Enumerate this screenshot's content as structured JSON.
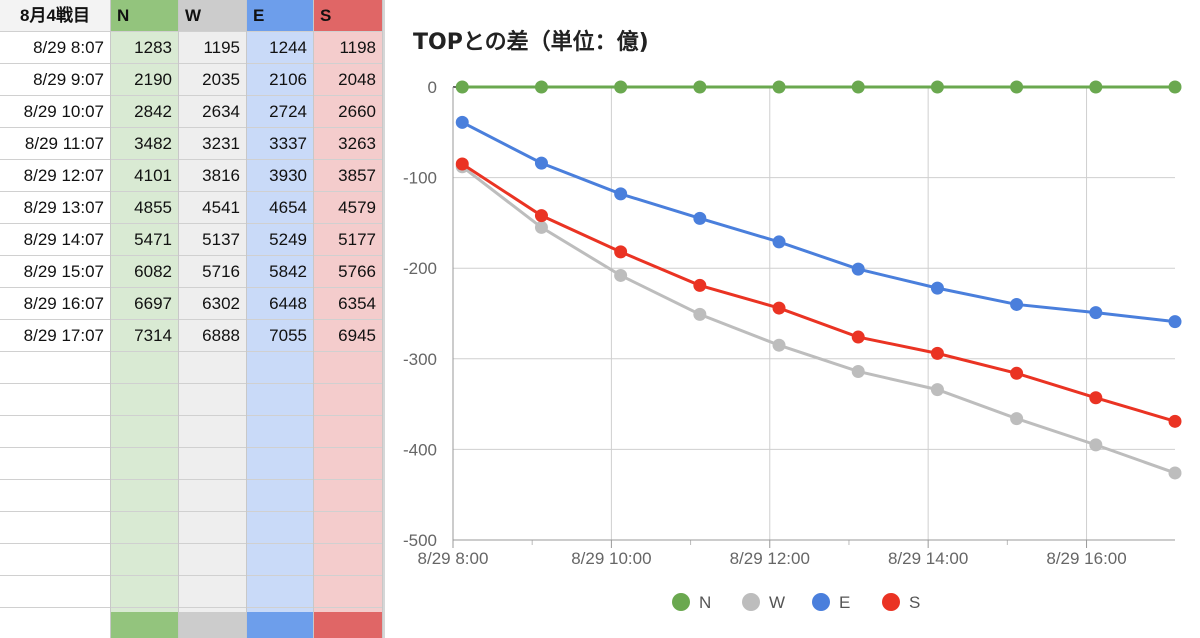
{
  "sheet": {
    "header_label": "8月4戦目",
    "columns": [
      {
        "code": "N",
        "header_color": "#93c47d",
        "body_color": "#d9ead3"
      },
      {
        "code": "W",
        "header_color": "#cccccc",
        "body_color": "#eeeeee"
      },
      {
        "code": "E",
        "header_color": "#6d9eeb",
        "body_color": "#c9daf8"
      },
      {
        "code": "S",
        "header_color": "#e06666",
        "body_color": "#f4cccc"
      }
    ],
    "rows": [
      {
        "time": "8/29 8:07",
        "values": [
          "1283",
          "1195",
          "1244",
          "1198"
        ]
      },
      {
        "time": "8/29 9:07",
        "values": [
          "2190",
          "2035",
          "2106",
          "2048"
        ]
      },
      {
        "time": "8/29 10:07",
        "values": [
          "2842",
          "2634",
          "2724",
          "2660"
        ]
      },
      {
        "time": "8/29 11:07",
        "values": [
          "3482",
          "3231",
          "3337",
          "3263"
        ]
      },
      {
        "time": "8/29 12:07",
        "values": [
          "4101",
          "3816",
          "3930",
          "3857"
        ]
      },
      {
        "time": "8/29 13:07",
        "values": [
          "4855",
          "4541",
          "4654",
          "4579"
        ]
      },
      {
        "time": "8/29 14:07",
        "values": [
          "5471",
          "5137",
          "5249",
          "5177"
        ]
      },
      {
        "time": "8/29 15:07",
        "values": [
          "6082",
          "5716",
          "5842",
          "5766"
        ]
      },
      {
        "time": "8/29 16:07",
        "values": [
          "6697",
          "6302",
          "6448",
          "6354"
        ]
      },
      {
        "time": "8/29 17:07",
        "values": [
          "7314",
          "6888",
          "7055",
          "6945"
        ]
      }
    ],
    "empty_rows": 8
  },
  "chart_data": {
    "type": "line",
    "title": "TOPとの差（単位：億)",
    "x": [
      "8/29 8:07",
      "8/29 9:07",
      "8/29 10:07",
      "8/29 11:07",
      "8/29 12:07",
      "8/29 13:07",
      "8/29 14:07",
      "8/29 15:07",
      "8/29 16:07",
      "8/29 17:07"
    ],
    "x_hours": [
      8.117,
      9.117,
      10.117,
      11.117,
      12.117,
      13.117,
      14.117,
      15.117,
      16.117,
      17.117
    ],
    "x_range_hours": [
      8.0,
      17.117
    ],
    "x_tick_hours": [
      8,
      10,
      12,
      14,
      16
    ],
    "x_tick_labels": [
      "8/29 8:00",
      "8/29 10:00",
      "8/29 12:00",
      "8/29 14:00",
      "8/29 16:00"
    ],
    "x_minor_tick_hours": [
      9,
      11,
      13,
      15
    ],
    "ylim": [
      -500,
      0
    ],
    "y_ticks": [
      0,
      -100,
      -200,
      -300,
      -400,
      -500
    ],
    "y_tick_labels": [
      "0",
      "-100",
      "-200",
      "-300",
      "-400",
      "-500"
    ],
    "grid": true,
    "legend_position": "bottom",
    "series": [
      {
        "name": "N",
        "color": "#6aa84f",
        "values": [
          0,
          0,
          0,
          0,
          0,
          0,
          0,
          0,
          0,
          0
        ]
      },
      {
        "name": "W",
        "color": "#bdbdbd",
        "values": [
          -88,
          -155,
          -208,
          -251,
          -285,
          -314,
          -334,
          -366,
          -395,
          -426
        ]
      },
      {
        "name": "E",
        "color": "#4a7fdc",
        "values": [
          -39,
          -84,
          -118,
          -145,
          -171,
          -201,
          -222,
          -240,
          -249,
          -259
        ]
      },
      {
        "name": "S",
        "color": "#ea3323",
        "values": [
          -85,
          -142,
          -182,
          -219,
          -244,
          -276,
          -294,
          -316,
          -343,
          -369
        ]
      }
    ]
  }
}
